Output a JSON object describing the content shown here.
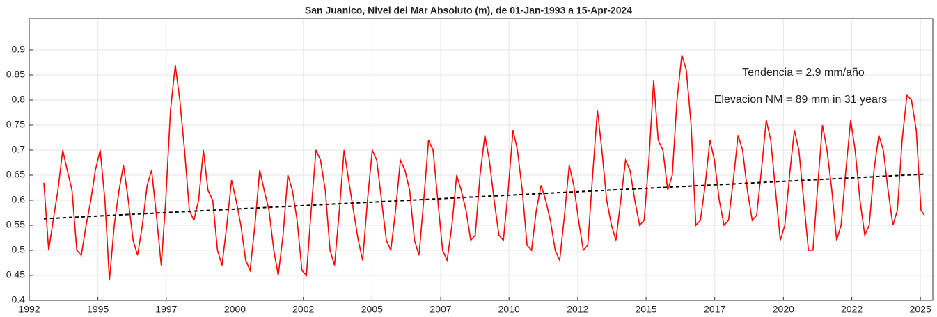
{
  "chart_data": {
    "type": "line",
    "title": "San Juanico, Nivel del Mar Absoluto (m), de 01-Jan-1993 a 15-Apr-2024",
    "annotations": [
      "Tendencia = 2.9 mm/año",
      "Elevacion NM = 89 mm in 31 years"
    ],
    "x": [
      1993,
      1993.17,
      1993.33,
      1993.5,
      1993.67,
      1993.83,
      1994,
      1994.17,
      1994.33,
      1994.5,
      1994.67,
      1994.83,
      1995,
      1995.17,
      1995.33,
      1995.5,
      1995.67,
      1995.83,
      1996,
      1996.17,
      1996.33,
      1996.5,
      1996.67,
      1996.83,
      1997,
      1997.17,
      1997.33,
      1997.5,
      1997.67,
      1997.83,
      1998,
      1998.17,
      1998.33,
      1998.5,
      1998.67,
      1998.83,
      1999,
      1999.17,
      1999.33,
      1999.5,
      1999.67,
      1999.83,
      2000,
      2000.17,
      2000.33,
      2000.5,
      2000.67,
      2000.83,
      2001,
      2001.17,
      2001.33,
      2001.5,
      2001.67,
      2001.83,
      2002,
      2002.17,
      2002.33,
      2002.5,
      2002.67,
      2002.83,
      2003,
      2003.17,
      2003.33,
      2003.5,
      2003.67,
      2003.83,
      2004,
      2004.17,
      2004.33,
      2004.5,
      2004.67,
      2004.83,
      2005,
      2005.17,
      2005.33,
      2005.5,
      2005.67,
      2005.83,
      2006,
      2006.17,
      2006.33,
      2006.5,
      2006.67,
      2006.83,
      2007,
      2007.17,
      2007.33,
      2007.5,
      2007.67,
      2007.83,
      2008,
      2008.17,
      2008.33,
      2008.5,
      2008.67,
      2008.83,
      2009,
      2009.17,
      2009.33,
      2009.5,
      2009.67,
      2009.83,
      2010,
      2010.17,
      2010.33,
      2010.5,
      2010.67,
      2010.83,
      2011,
      2011.17,
      2011.33,
      2011.5,
      2011.67,
      2011.83,
      2012,
      2012.17,
      2012.33,
      2012.5,
      2012.67,
      2012.83,
      2013,
      2013.17,
      2013.33,
      2013.5,
      2013.67,
      2013.83,
      2014,
      2014.17,
      2014.33,
      2014.5,
      2014.67,
      2014.83,
      2015,
      2015.17,
      2015.33,
      2015.5,
      2015.67,
      2015.83,
      2016,
      2016.17,
      2016.33,
      2016.5,
      2016.67,
      2016.83,
      2017,
      2017.17,
      2017.33,
      2017.5,
      2017.67,
      2017.83,
      2018,
      2018.17,
      2018.33,
      2018.5,
      2018.67,
      2018.83,
      2019,
      2019.17,
      2019.33,
      2019.5,
      2019.67,
      2019.83,
      2020,
      2020.17,
      2020.33,
      2020.5,
      2020.67,
      2020.83,
      2021,
      2021.17,
      2021.33,
      2021.5,
      2021.67,
      2021.83,
      2022,
      2022.17,
      2022.33,
      2022.5,
      2022.67,
      2022.83,
      2023,
      2023.17,
      2023.33,
      2023.5,
      2023.67,
      2023.83,
      2024,
      2024.17,
      2024.29
    ],
    "series": [
      {
        "color": "#ff0000",
        "values": [
          0.635,
          0.5,
          0.56,
          0.62,
          0.7,
          0.66,
          0.62,
          0.5,
          0.49,
          0.55,
          0.6,
          0.66,
          0.7,
          0.6,
          0.44,
          0.55,
          0.62,
          0.67,
          0.6,
          0.52,
          0.49,
          0.55,
          0.63,
          0.66,
          0.57,
          0.47,
          0.6,
          0.78,
          0.87,
          0.8,
          0.7,
          0.58,
          0.56,
          0.6,
          0.7,
          0.62,
          0.6,
          0.5,
          0.47,
          0.55,
          0.64,
          0.6,
          0.55,
          0.48,
          0.46,
          0.55,
          0.66,
          0.62,
          0.58,
          0.5,
          0.45,
          0.53,
          0.65,
          0.62,
          0.56,
          0.46,
          0.45,
          0.58,
          0.7,
          0.68,
          0.62,
          0.5,
          0.47,
          0.58,
          0.7,
          0.64,
          0.58,
          0.52,
          0.48,
          0.6,
          0.7,
          0.68,
          0.6,
          0.52,
          0.5,
          0.58,
          0.68,
          0.66,
          0.62,
          0.52,
          0.49,
          0.6,
          0.72,
          0.7,
          0.6,
          0.5,
          0.48,
          0.55,
          0.65,
          0.62,
          0.58,
          0.52,
          0.53,
          0.65,
          0.73,
          0.68,
          0.6,
          0.53,
          0.52,
          0.62,
          0.74,
          0.7,
          0.62,
          0.51,
          0.5,
          0.58,
          0.63,
          0.6,
          0.56,
          0.5,
          0.48,
          0.57,
          0.67,
          0.63,
          0.56,
          0.5,
          0.51,
          0.65,
          0.78,
          0.7,
          0.6,
          0.55,
          0.52,
          0.6,
          0.68,
          0.66,
          0.6,
          0.55,
          0.56,
          0.68,
          0.84,
          0.72,
          0.7,
          0.62,
          0.65,
          0.8,
          0.89,
          0.86,
          0.75,
          0.55,
          0.56,
          0.63,
          0.72,
          0.68,
          0.6,
          0.55,
          0.56,
          0.64,
          0.73,
          0.7,
          0.62,
          0.56,
          0.57,
          0.66,
          0.76,
          0.72,
          0.62,
          0.52,
          0.55,
          0.65,
          0.74,
          0.7,
          0.6,
          0.5,
          0.5,
          0.63,
          0.75,
          0.7,
          0.62,
          0.52,
          0.55,
          0.66,
          0.76,
          0.7,
          0.6,
          0.53,
          0.55,
          0.66,
          0.73,
          0.7,
          0.62,
          0.55,
          0.58,
          0.72,
          0.81,
          0.8,
          0.74,
          0.58,
          0.57
        ]
      }
    ],
    "trend": {
      "color": "#000000",
      "x": [
        1993,
        2024.29
      ],
      "values": [
        0.563,
        0.652
      ]
    },
    "xlim": [
      1992.48,
      2024.59
    ],
    "xticks": [
      {
        "value": 1992.48,
        "label": "1992"
      },
      {
        "value": 1994.92,
        "label": "1995"
      },
      {
        "value": 1997.35,
        "label": "1997"
      },
      {
        "value": 1999.79,
        "label": "2000"
      },
      {
        "value": 2002.22,
        "label": "2002"
      },
      {
        "value": 2004.66,
        "label": "2005"
      },
      {
        "value": 2007.1,
        "label": "2007"
      },
      {
        "value": 2009.53,
        "label": "2010"
      },
      {
        "value": 2011.97,
        "label": "2012"
      },
      {
        "value": 2014.4,
        "label": "2015"
      },
      {
        "value": 2016.84,
        "label": "2017"
      },
      {
        "value": 2019.28,
        "label": "2020"
      },
      {
        "value": 2021.71,
        "label": "2022"
      },
      {
        "value": 2024.15,
        "label": "2025"
      }
    ],
    "ylim": [
      0.4,
      0.9625
    ],
    "yticks": [
      0.4,
      0.45,
      0.5,
      0.55,
      0.6,
      0.65,
      0.7,
      0.75,
      0.8,
      0.85,
      0.9
    ],
    "grid": true
  }
}
